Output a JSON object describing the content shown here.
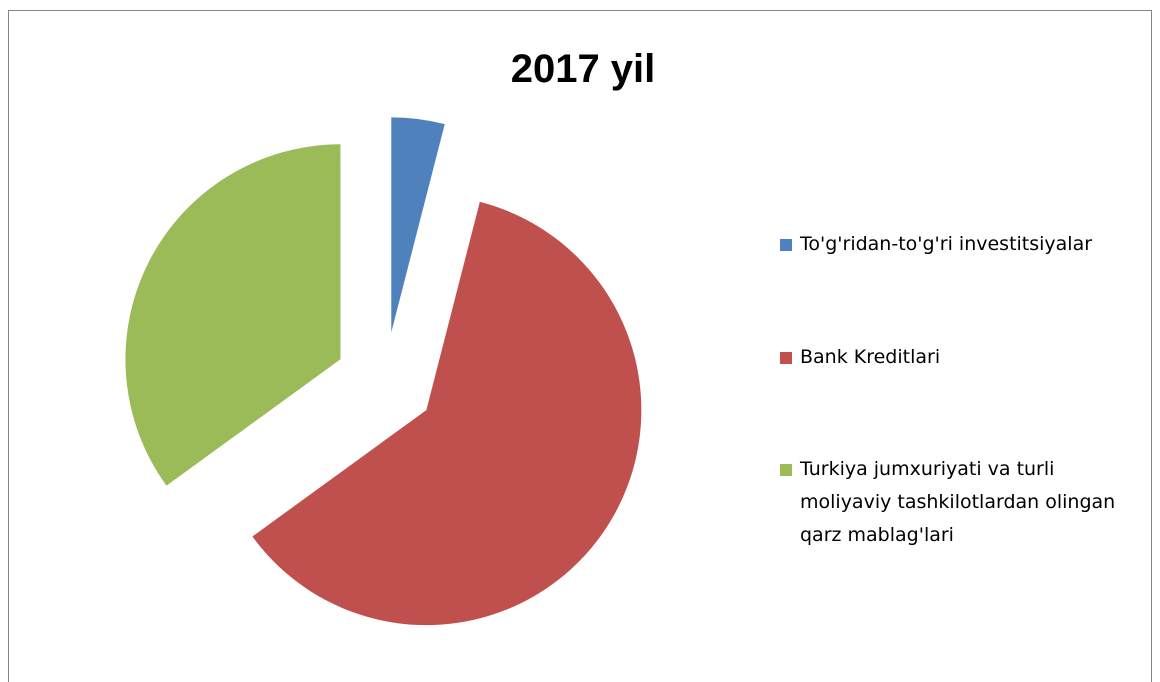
{
  "chart_data": {
    "type": "pie",
    "title": "2017 yil",
    "categories": [
      "To'g'ridan-to'g'ri investitsiyalar",
      "Bank Kreditlari",
      "Turkiya jumxuriyati va turli moliyaviy tashkilotlardan olingan qarz mablag'lari"
    ],
    "values": [
      4,
      61,
      35
    ],
    "colors": [
      "#4f81bd",
      "#c0504d",
      "#9bbb59"
    ],
    "legend": "right"
  }
}
